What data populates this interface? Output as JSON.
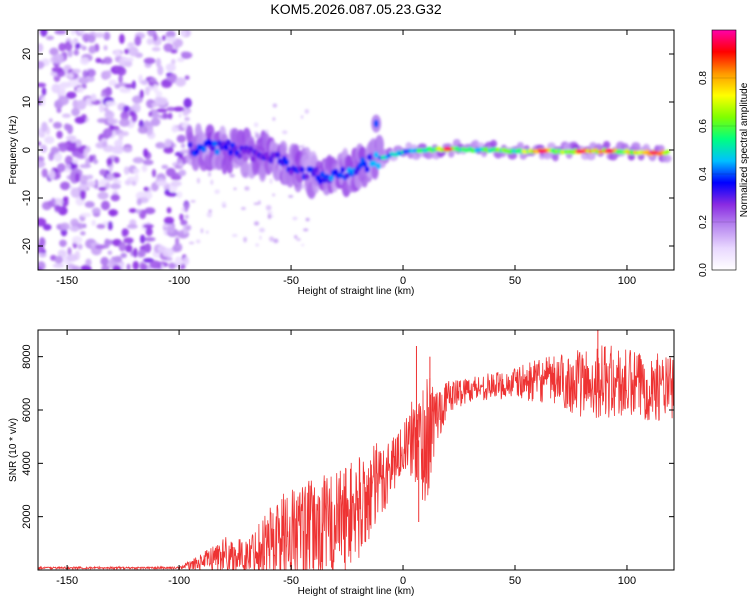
{
  "figure": {
    "title": "KOM5.2026.087.05.23.G32"
  },
  "chart_data": [
    {
      "type": "heatmap",
      "title": "KOM5.2026.087.05.23.G32",
      "xlabel": "Height of straight line (km)",
      "ylabel": "Frequency (Hz)",
      "xlim": [
        -163,
        121
      ],
      "ylim": [
        -25,
        25
      ],
      "x_ticks": [
        -150,
        -100,
        -50,
        0,
        50,
        100
      ],
      "y_ticks": [
        -20,
        -10,
        0,
        10,
        20
      ],
      "colorbar": {
        "label": "Normalized spectral amplitude",
        "range": [
          0,
          1
        ],
        "ticks": [
          0.0,
          0.2,
          0.4,
          0.6,
          0.8
        ],
        "colormap": [
          "#ffffff",
          "#e9d8ff",
          "#b98af0",
          "#8a2be2",
          "#0000ff",
          "#00c0ff",
          "#00ff80",
          "#7fff00",
          "#ffff00",
          "#ff9900",
          "#ff0000",
          "#ff00aa"
        ]
      },
      "noise_region": {
        "x_range": [
          -163,
          -100
        ],
        "y_range": [
          -25,
          25
        ],
        "level": 0.25
      },
      "track": [
        {
          "x": -95,
          "y": 0.5,
          "amp": 0.35
        },
        {
          "x": -85,
          "y": 0.5,
          "amp": 0.4
        },
        {
          "x": -75,
          "y": 0.0,
          "amp": 0.35
        },
        {
          "x": -65,
          "y": -1.0,
          "amp": 0.3
        },
        {
          "x": -55,
          "y": -2.5,
          "amp": 0.35
        },
        {
          "x": -45,
          "y": -4.0,
          "amp": 0.35
        },
        {
          "x": -35,
          "y": -6.5,
          "amp": 0.4
        },
        {
          "x": -25,
          "y": -4.5,
          "amp": 0.4
        },
        {
          "x": -15,
          "y": -2.5,
          "amp": 0.45
        },
        {
          "x": -5,
          "y": -1.0,
          "amp": 0.5
        },
        {
          "x": 0,
          "y": -0.5,
          "amp": 0.5
        },
        {
          "x": 10,
          "y": 0.0,
          "amp": 0.55
        },
        {
          "x": 20,
          "y": 0.2,
          "amp": 0.75
        },
        {
          "x": 30,
          "y": 0.1,
          "amp": 0.55
        },
        {
          "x": 40,
          "y": 0.0,
          "amp": 0.6
        },
        {
          "x": 50,
          "y": -0.2,
          "amp": 0.6
        },
        {
          "x": 60,
          "y": -0.2,
          "amp": 0.8
        },
        {
          "x": 70,
          "y": -0.3,
          "amp": 0.7
        },
        {
          "x": 80,
          "y": -0.3,
          "amp": 0.85
        },
        {
          "x": 90,
          "y": -0.2,
          "amp": 0.75
        },
        {
          "x": 100,
          "y": -0.4,
          "amp": 0.7
        },
        {
          "x": 110,
          "y": -0.6,
          "amp": 0.9
        },
        {
          "x": 118,
          "y": -0.6,
          "amp": 0.85
        }
      ],
      "isolated_blobs": [
        {
          "x": -12,
          "y": 5.5,
          "amp": 0.4
        }
      ]
    },
    {
      "type": "line",
      "xlabel": "Height of straight line (km)",
      "ylabel": "SNR (10 * v/v)",
      "xlim": [
        -163,
        121
      ],
      "ylim": [
        0,
        9000
      ],
      "x_ticks": [
        -150,
        -100,
        -50,
        0,
        50,
        100
      ],
      "y_ticks": [
        2000,
        4000,
        6000,
        8000
      ],
      "color": "#ee3333",
      "envelope": [
        {
          "x": -163,
          "mean": 80,
          "spread": 40
        },
        {
          "x": -100,
          "mean": 80,
          "spread": 40
        },
        {
          "x": -90,
          "mean": 300,
          "spread": 300
        },
        {
          "x": -80,
          "mean": 600,
          "spread": 700
        },
        {
          "x": -70,
          "mean": 500,
          "spread": 600
        },
        {
          "x": -60,
          "mean": 1100,
          "spread": 1400
        },
        {
          "x": -50,
          "mean": 1400,
          "spread": 1800
        },
        {
          "x": -40,
          "mean": 1500,
          "spread": 1900
        },
        {
          "x": -30,
          "mean": 1800,
          "spread": 2000
        },
        {
          "x": -20,
          "mean": 2300,
          "spread": 2000
        },
        {
          "x": -10,
          "mean": 3300,
          "spread": 1600
        },
        {
          "x": 0,
          "mean": 4600,
          "spread": 800
        },
        {
          "x": 5,
          "mean": 4900,
          "spread": 1700
        },
        {
          "x": 10,
          "mean": 4800,
          "spread": 2600
        },
        {
          "x": 15,
          "mean": 5800,
          "spread": 1200
        },
        {
          "x": 20,
          "mean": 6500,
          "spread": 600
        },
        {
          "x": 30,
          "mean": 6800,
          "spread": 500
        },
        {
          "x": 40,
          "mean": 6900,
          "spread": 500
        },
        {
          "x": 50,
          "mean": 7000,
          "spread": 600
        },
        {
          "x": 60,
          "mean": 7100,
          "spread": 800
        },
        {
          "x": 70,
          "mean": 7100,
          "spread": 1000
        },
        {
          "x": 80,
          "mean": 7000,
          "spread": 1300
        },
        {
          "x": 90,
          "mean": 7100,
          "spread": 1400
        },
        {
          "x": 100,
          "mean": 6900,
          "spread": 1400
        },
        {
          "x": 110,
          "mean": 6900,
          "spread": 1300
        },
        {
          "x": 121,
          "mean": 6800,
          "spread": 1200
        }
      ],
      "spikes": [
        {
          "x": 6,
          "y": 8400
        },
        {
          "x": 7,
          "y": 1800
        },
        {
          "x": 12,
          "y": 8000
        },
        {
          "x": 87,
          "y": 9000
        }
      ]
    }
  ]
}
